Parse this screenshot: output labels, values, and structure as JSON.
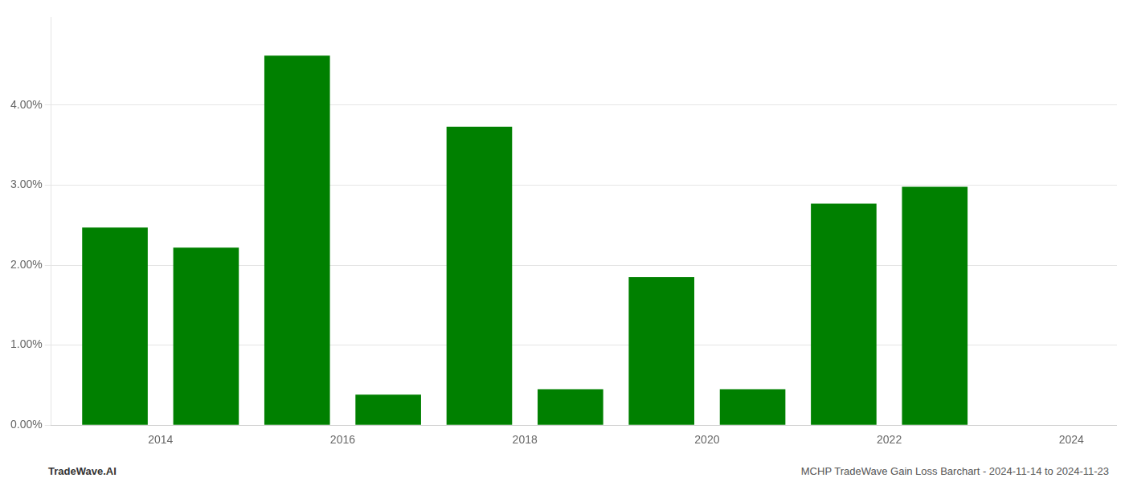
{
  "chart_data": {
    "type": "bar",
    "x": [
      2014,
      2015,
      2016,
      2017,
      2018,
      2019,
      2020,
      2021,
      2022,
      2023,
      2024
    ],
    "values": [
      0.0247,
      0.0222,
      0.0462,
      0.0038,
      0.0373,
      0.0045,
      0.0185,
      0.0045,
      0.0277,
      0.0298,
      0.0
    ],
    "colors": [
      "#008000",
      "#008000",
      "#008000",
      "#008000",
      "#008000",
      "#008000",
      "#008000",
      "#008000",
      "#008000",
      "#008000",
      "#008000"
    ],
    "xlim": [
      2013.3,
      2025.0
    ],
    "xticks": [
      {
        "value": 2014.5,
        "label": "2014"
      },
      {
        "value": 2016.5,
        "label": "2016"
      },
      {
        "value": 2018.5,
        "label": "2018"
      },
      {
        "value": 2020.5,
        "label": "2020"
      },
      {
        "value": 2022.5,
        "label": "2022"
      },
      {
        "value": 2024.5,
        "label": "2024"
      }
    ],
    "ylim": [
      0.0,
      0.051
    ],
    "yticks": [
      {
        "value": 0.0,
        "label": "0.00%"
      },
      {
        "value": 0.01,
        "label": "1.00%"
      },
      {
        "value": 0.02,
        "label": "2.00%"
      },
      {
        "value": 0.03,
        "label": "3.00%"
      },
      {
        "value": 0.04,
        "label": "4.00%"
      }
    ],
    "grid": true,
    "annotations": [
      "TradeWave.AI",
      "MCHP TradeWave Gain Loss Barchart - 2024-11-14 to 2024-11-23"
    ]
  }
}
